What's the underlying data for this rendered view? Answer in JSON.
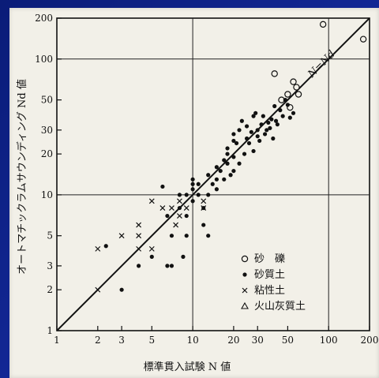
{
  "chart_data": {
    "type": "scatter",
    "xscale": "log",
    "yscale": "log",
    "xlim": [
      1,
      200
    ],
    "ylim": [
      1,
      200
    ],
    "grid": "lines at 10 and 100",
    "xlabel": "標準貫入試験 N 値",
    "ylabel": "オートマチックラムサウンディング Nd 値",
    "x_ticks": [
      "1",
      "2",
      "3",
      "5",
      "10",
      "20",
      "30",
      "50",
      "100",
      "200"
    ],
    "y_ticks": [
      "1",
      "2",
      "3",
      "5",
      "10",
      "20",
      "30",
      "50",
      "100",
      "200"
    ],
    "line_label": "N=Nd",
    "line": {
      "x": [
        1,
        200
      ],
      "y": [
        1,
        200
      ]
    },
    "legend_position": "lower-right",
    "series": [
      {
        "name": "砂　礫",
        "marker": "open-circle",
        "points": [
          [
            91,
            180
          ],
          [
            180,
            140
          ],
          [
            40,
            78
          ],
          [
            55,
            68
          ],
          [
            50,
            55
          ],
          [
            58,
            62
          ],
          [
            60,
            55
          ],
          [
            45,
            50
          ],
          [
            52,
            44
          ]
        ]
      },
      {
        "name": "砂質土",
        "marker": "filled-circle",
        "points": [
          [
            2.3,
            4.2
          ],
          [
            3,
            2
          ],
          [
            4,
            3
          ],
          [
            5,
            3.5
          ],
          [
            6,
            11.5
          ],
          [
            6.5,
            7
          ],
          [
            6.5,
            3
          ],
          [
            7,
            3
          ],
          [
            7,
            5
          ],
          [
            8,
            8
          ],
          [
            8,
            10
          ],
          [
            9,
            5
          ],
          [
            9,
            7
          ],
          [
            9,
            10
          ],
          [
            10,
            12
          ],
          [
            10,
            13
          ],
          [
            10,
            11
          ],
          [
            10,
            9
          ],
          [
            11,
            10
          ],
          [
            11,
            12
          ],
          [
            12,
            6
          ],
          [
            12,
            8
          ],
          [
            13,
            10
          ],
          [
            13,
            14
          ],
          [
            14,
            12
          ],
          [
            15,
            11
          ],
          [
            15,
            13
          ],
          [
            15,
            16
          ],
          [
            16,
            15
          ],
          [
            17,
            18
          ],
          [
            17,
            13
          ],
          [
            18,
            17
          ],
          [
            18,
            22
          ],
          [
            18,
            20
          ],
          [
            19,
            14
          ],
          [
            20,
            15
          ],
          [
            20,
            25
          ],
          [
            20,
            28
          ],
          [
            20,
            19
          ],
          [
            21,
            24
          ],
          [
            22,
            30
          ],
          [
            22,
            17
          ],
          [
            23,
            35
          ],
          [
            24,
            20
          ],
          [
            25,
            26
          ],
          [
            25,
            32
          ],
          [
            26,
            24
          ],
          [
            27,
            29
          ],
          [
            28,
            38
          ],
          [
            28,
            21
          ],
          [
            29,
            40
          ],
          [
            30,
            30
          ],
          [
            30,
            27
          ],
          [
            31,
            25
          ],
          [
            32,
            33
          ],
          [
            33,
            38
          ],
          [
            34,
            28
          ],
          [
            35,
            30
          ],
          [
            36,
            34
          ],
          [
            37,
            31
          ],
          [
            38,
            36
          ],
          [
            39,
            26
          ],
          [
            40,
            45
          ],
          [
            41,
            35
          ],
          [
            42,
            33
          ],
          [
            44,
            42
          ],
          [
            46,
            38
          ],
          [
            48,
            50
          ],
          [
            50,
            46
          ],
          [
            52,
            37
          ],
          [
            55,
            40
          ],
          [
            13,
            5
          ],
          [
            8.5,
            3.5
          ]
        ]
      },
      {
        "name": "粘性土",
        "marker": "cross",
        "points": [
          [
            2,
            4
          ],
          [
            2,
            2
          ],
          [
            3,
            5
          ],
          [
            4,
            4
          ],
          [
            4,
            5
          ],
          [
            4,
            6
          ],
          [
            5,
            9
          ],
          [
            5,
            4
          ],
          [
            6,
            8
          ],
          [
            7,
            8
          ],
          [
            7.5,
            6
          ],
          [
            8,
            7
          ],
          [
            8,
            9
          ],
          [
            9,
            8
          ],
          [
            12,
            9
          ],
          [
            12,
            8
          ]
        ]
      },
      {
        "name": "火山灰質土",
        "marker": "triangle",
        "points": []
      }
    ]
  }
}
